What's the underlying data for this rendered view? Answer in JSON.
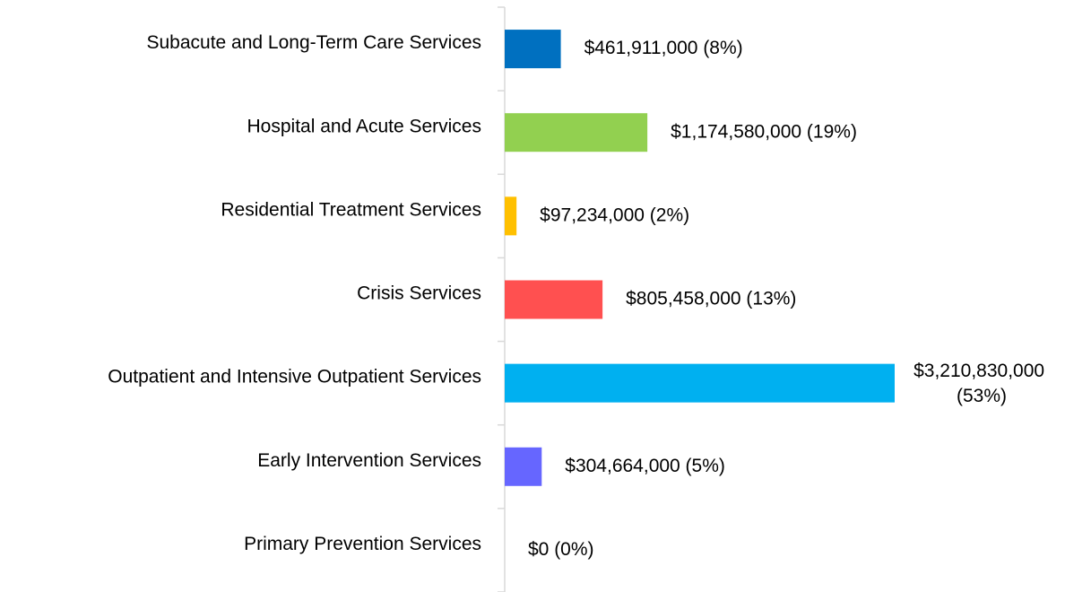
{
  "chart_data": {
    "type": "bar",
    "orientation": "horizontal",
    "categories": [
      "Subacute and Long-Term Care Services",
      "Hospital and Acute Services",
      "Residential Treatment Services",
      "Crisis Services",
      "Outpatient and Intensive Outpatient Services",
      "Early Intervention Services",
      "Primary Prevention Services"
    ],
    "values": [
      461911000,
      1174580000,
      97234000,
      805458000,
      3210830000,
      304664000,
      0
    ],
    "value_labels": [
      "$461,911,000 (8%)",
      "$1,174,580,000 (19%)",
      "$97,234,000 (2%)",
      "$805,458,000 (13%)",
      "$3,210,830,000 (53%)",
      "$304,664,000 (5%)",
      "$0 (0%)"
    ],
    "colors": [
      "#0070c0",
      "#92d050",
      "#ffc000",
      "#ff5050",
      "#00b0f0",
      "#6666ff",
      null
    ]
  }
}
